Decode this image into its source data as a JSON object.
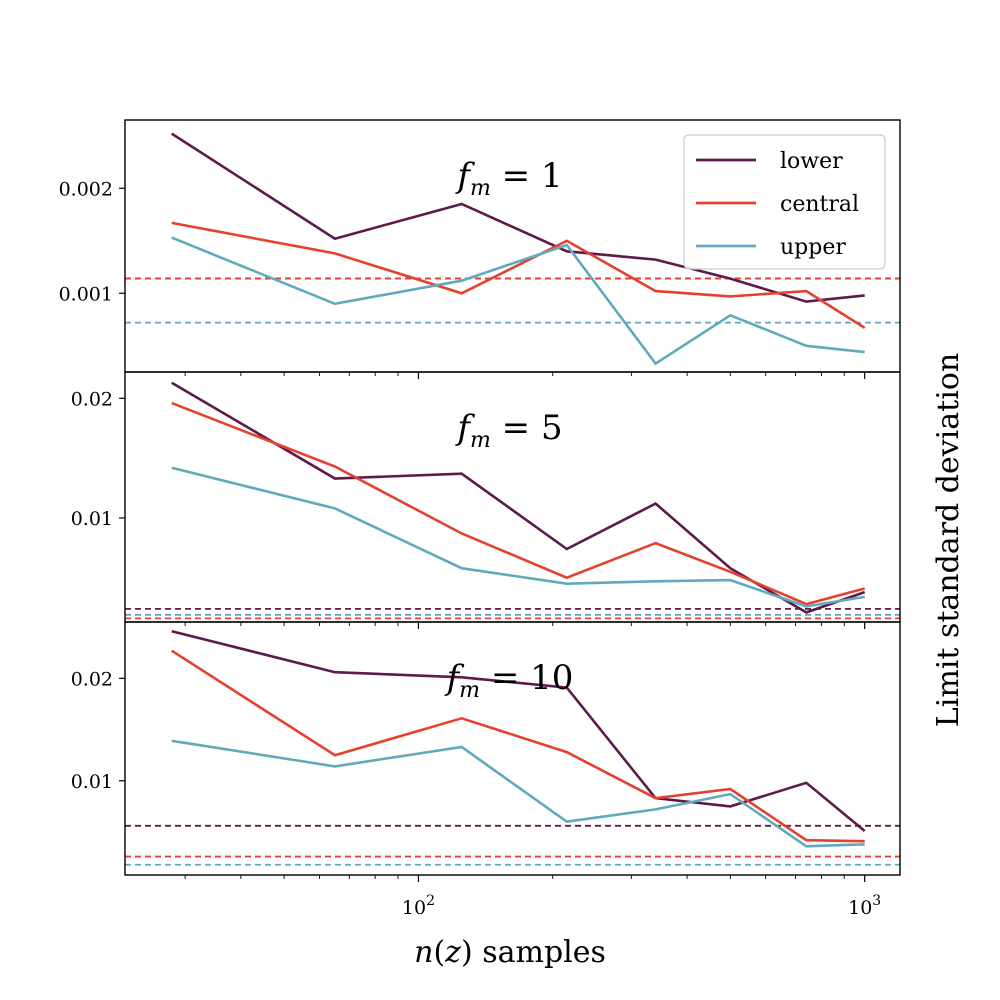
{
  "chart_data": {
    "type": "line",
    "xlabel": "n(z) samples",
    "ylabel": "Limit standard deviation",
    "x_scale": "log",
    "xlim": [
      22,
      1200
    ],
    "x_ticks": [
      {
        "value": 100,
        "base": "10",
        "exp": "2"
      },
      {
        "value": 1000,
        "base": "10",
        "exp": "3"
      }
    ],
    "x": [
      28,
      65,
      125,
      215,
      340,
      500,
      740,
      1000
    ],
    "colors": {
      "lower": "#5e1a4a",
      "central": "#e5412f",
      "upper": "#62aabb"
    },
    "legend": {
      "placement": "top-right",
      "entries": [
        {
          "series": "lower",
          "label": "lower"
        },
        {
          "series": "central",
          "label": "central"
        },
        {
          "series": "upper",
          "label": "upper"
        }
      ]
    },
    "panels": [
      {
        "title_main": "f",
        "title_sub": "m",
        "title_rest": " = 1",
        "ylim": [
          0.00025,
          0.00265
        ],
        "y_ticks": [
          {
            "value": 0.001,
            "label": "0.001"
          },
          {
            "value": 0.002,
            "label": "0.002"
          }
        ],
        "series": [
          {
            "name": "lower",
            "values": [
              0.00252,
              0.00152,
              0.00185,
              0.0014,
              0.00132,
              0.00114,
              0.00092,
              0.00098
            ]
          },
          {
            "name": "central",
            "values": [
              0.00167,
              0.00138,
              0.001,
              0.0015,
              0.00102,
              0.00097,
              0.00102,
              0.00067
            ]
          },
          {
            "name": "upper",
            "values": [
              0.00153,
              0.0009,
              0.00112,
              0.00146,
              0.00033,
              0.00079,
              0.0005,
              0.00044
            ]
          }
        ],
        "reference_lines": [
          {
            "series": "lower",
            "value": 0.00114
          },
          {
            "series": "central",
            "value": 0.00114
          },
          {
            "series": "upper",
            "value": 0.00072
          }
        ]
      },
      {
        "title_main": "f",
        "title_sub": "m",
        "title_rest": " = 5",
        "ylim": [
          0.0013,
          0.0222
        ],
        "y_ticks": [
          {
            "value": 0.01,
            "label": "0.01"
          },
          {
            "value": 0.02,
            "label": "0.02"
          }
        ],
        "series": [
          {
            "name": "lower",
            "values": [
              0.0213,
              0.0133,
              0.0137,
              0.0074,
              0.0112,
              0.0058,
              0.0021,
              0.0038
            ]
          },
          {
            "name": "central",
            "values": [
              0.0196,
              0.0143,
              0.0087,
              0.005,
              0.0079,
              0.0055,
              0.0028,
              0.0041
            ]
          },
          {
            "name": "upper",
            "values": [
              0.0142,
              0.0108,
              0.0058,
              0.0045,
              0.0047,
              0.0048,
              0.0026,
              0.0034
            ]
          }
        ],
        "reference_lines": [
          {
            "series": "lower",
            "value": 0.0024
          },
          {
            "series": "upper",
            "value": 0.0019
          },
          {
            "series": "central",
            "value": 0.0016
          }
        ]
      },
      {
        "title_main": "f",
        "title_sub": "m",
        "title_rest": " = 10",
        "ylim": [
          0.0008,
          0.0255
        ],
        "y_ticks": [
          {
            "value": 0.01,
            "label": "0.01"
          },
          {
            "value": 0.02,
            "label": "0.02"
          }
        ],
        "series": [
          {
            "name": "lower",
            "values": [
              0.0246,
              0.0206,
              0.0201,
              0.0191,
              0.0083,
              0.0075,
              0.0098,
              0.0051
            ]
          },
          {
            "name": "central",
            "values": [
              0.0227,
              0.0125,
              0.0161,
              0.0128,
              0.0083,
              0.0092,
              0.0042,
              0.0041
            ]
          },
          {
            "name": "upper",
            "values": [
              0.0139,
              0.0114,
              0.0133,
              0.006,
              0.0072,
              0.0087,
              0.0036,
              0.0038
            ]
          }
        ],
        "reference_lines": [
          {
            "series": "lower",
            "value": 0.0056
          },
          {
            "series": "central",
            "value": 0.0026
          },
          {
            "series": "upper",
            "value": 0.0018
          }
        ]
      }
    ]
  }
}
